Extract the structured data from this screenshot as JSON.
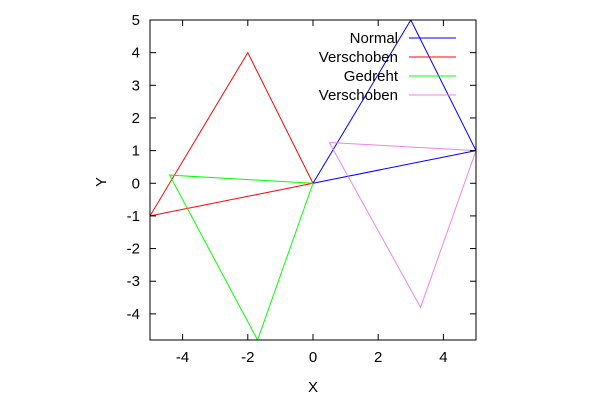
{
  "chart_data": {
    "type": "line",
    "title": "",
    "xlabel": "X",
    "ylabel": "Y",
    "xlim": [
      -5,
      5
    ],
    "ylim": [
      -4.8,
      5
    ],
    "xticks": [
      -4,
      -2,
      0,
      2,
      4
    ],
    "yticks": [
      -4,
      -3,
      -2,
      -1,
      0,
      1,
      2,
      3,
      4,
      5
    ],
    "xtick_labels": [
      "-4",
      "-2",
      "0",
      "2",
      "4"
    ],
    "ytick_labels": [
      "-4",
      "-3",
      "-2",
      "-1",
      "0",
      "1",
      "2",
      "3",
      "4",
      "5"
    ],
    "grid": false,
    "legend_position": "top-right",
    "series": [
      {
        "name": "Normal",
        "color": "#0000ff",
        "x": [
          0,
          3,
          5,
          0
        ],
        "y": [
          0,
          5,
          1,
          0
        ]
      },
      {
        "name": "Verschoben",
        "color": "#ff0000",
        "x": [
          0,
          -2,
          -5,
          0
        ],
        "y": [
          0,
          4,
          -1,
          0
        ]
      },
      {
        "name": "Gedreht",
        "color": "#00ff00",
        "x": [
          0,
          -1.7,
          -4.4,
          0
        ],
        "y": [
          0,
          -4.8,
          0.25,
          0
        ]
      },
      {
        "name": "Verschoben",
        "color": "#ee82ee",
        "x": [
          0.5,
          3.3,
          5,
          0.5
        ],
        "y": [
          1.25,
          -3.8,
          1,
          1.25
        ]
      }
    ]
  }
}
